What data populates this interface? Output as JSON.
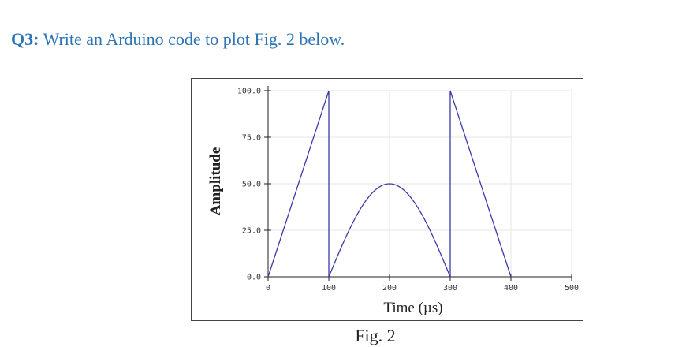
{
  "question": {
    "number": "Q3:",
    "text": "Write an Arduino code to plot Fig. 2 below."
  },
  "figure": {
    "caption": "Fig. 2"
  },
  "chart_data": {
    "type": "line",
    "title": "",
    "xlabel": "Time (µs)",
    "ylabel": "Amplitude",
    "xlim": [
      0,
      500
    ],
    "ylim": [
      0,
      100
    ],
    "x_ticks": [
      0,
      100,
      200,
      300,
      400,
      500
    ],
    "x_tick_labels": [
      "0",
      "100",
      "200",
      "300",
      "400",
      "500"
    ],
    "y_ticks": [
      0,
      25,
      50,
      75,
      100
    ],
    "y_tick_labels": [
      "0.0",
      "25.0",
      "50.0",
      "75.0",
      "100.0"
    ],
    "grid": true,
    "line_color": "#3a3aa8",
    "series": [
      {
        "segments": [
          {
            "shape": "ramp",
            "x": [
              0,
              100
            ],
            "y": [
              0,
              100
            ]
          },
          {
            "shape": "drop",
            "x": [
              100,
              100
            ],
            "y": [
              100,
              0
            ]
          },
          {
            "shape": "half-sine",
            "x": [
              100,
              300
            ],
            "peak": 50
          },
          {
            "shape": "jump",
            "x": [
              300,
              300
            ],
            "y": [
              0,
              100
            ]
          },
          {
            "shape": "ramp",
            "x": [
              300,
              400
            ],
            "y": [
              100,
              0
            ]
          }
        ]
      }
    ]
  }
}
